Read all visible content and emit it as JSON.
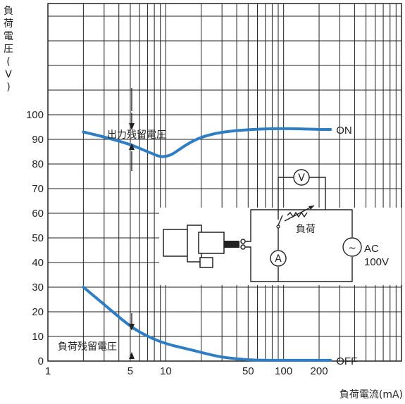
{
  "chart_data": {
    "type": "line",
    "title": "",
    "xlabel": "負荷電流(mA)",
    "ylabel": "負荷電圧(V)",
    "x_scale": "log",
    "xlim": [
      1,
      1000
    ],
    "ylim": [
      0,
      100
    ],
    "grid": true,
    "x_tick_labels": [
      {
        "value": 1,
        "label": "1"
      },
      {
        "value": 5,
        "label": "5"
      },
      {
        "value": 10,
        "label": "10"
      },
      {
        "value": 50,
        "label": "50"
      },
      {
        "value": 100,
        "label": "100"
      },
      {
        "value": 200,
        "label": "200"
      }
    ],
    "y_tick_labels": [
      {
        "value": 0,
        "label": "0"
      },
      {
        "value": 10,
        "label": "10"
      },
      {
        "value": 20,
        "label": "20"
      },
      {
        "value": 30,
        "label": "30"
      },
      {
        "value": 40,
        "label": "40"
      },
      {
        "value": 50,
        "label": "50"
      },
      {
        "value": 60,
        "label": "60"
      },
      {
        "value": 70,
        "label": "70"
      },
      {
        "value": 80,
        "label": "80"
      },
      {
        "value": 90,
        "label": "90"
      },
      {
        "value": 100,
        "label": "100"
      }
    ],
    "series": [
      {
        "name": "ON",
        "color": "#2f7ec4",
        "points": [
          [
            2,
            93
          ],
          [
            3,
            91
          ],
          [
            5,
            88
          ],
          [
            7,
            85
          ],
          [
            10,
            82
          ],
          [
            15,
            88
          ],
          [
            20,
            91
          ],
          [
            30,
            93
          ],
          [
            50,
            94
          ],
          [
            100,
            94.5
          ],
          [
            200,
            94
          ],
          [
            250,
            94
          ]
        ]
      },
      {
        "name": "OFF",
        "color": "#2f7ec4",
        "points": [
          [
            2,
            30
          ],
          [
            3,
            23
          ],
          [
            5,
            14
          ],
          [
            7,
            10
          ],
          [
            10,
            7
          ],
          [
            15,
            5
          ],
          [
            20,
            3.5
          ],
          [
            30,
            1.5
          ],
          [
            50,
            0.5
          ],
          [
            70,
            0.3
          ],
          [
            100,
            0.3
          ],
          [
            150,
            0.3
          ],
          [
            250,
            0.3
          ]
        ]
      }
    ],
    "annotations": [
      {
        "text": "出力残留電圧",
        "x": 5,
        "y": 92
      },
      {
        "text": "負荷残留電圧",
        "x": 5,
        "y": 6
      }
    ],
    "circuit": {
      "voltmeter_symbol": "V",
      "ammeter_symbol": "A",
      "load_label": "負荷",
      "source_symbol": "~",
      "source_label_1": "AC",
      "source_label_2": "100V"
    }
  }
}
